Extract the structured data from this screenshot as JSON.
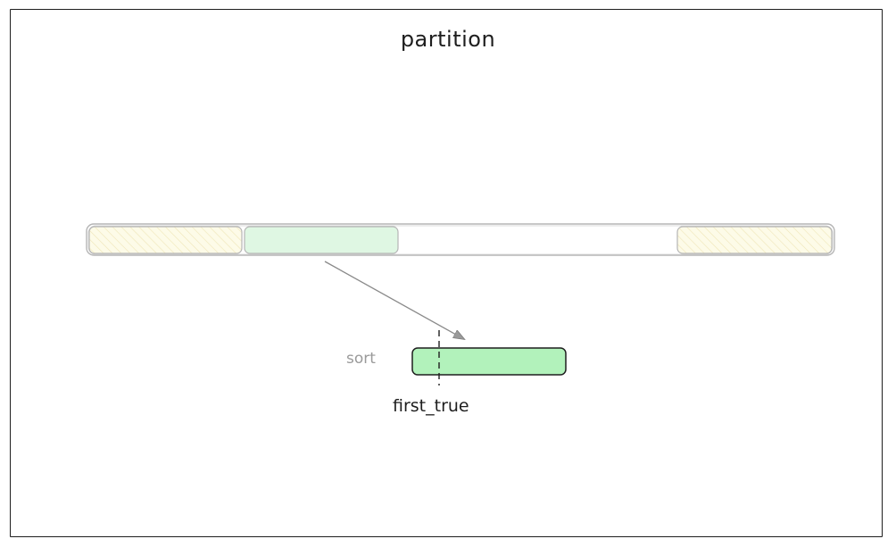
{
  "diagram": {
    "title": "partition",
    "sort_label": "sort",
    "first_true_label": "first_true",
    "colors": {
      "stroke": "#1e1e1e",
      "light_stroke": "#b0b0b0",
      "hatch_fill": "#fdfbe8",
      "hatch_line": "#efe6b8",
      "light_green": "#dff7e3",
      "green": "#b2f2bb",
      "arrow": "#8a8a8a"
    }
  }
}
